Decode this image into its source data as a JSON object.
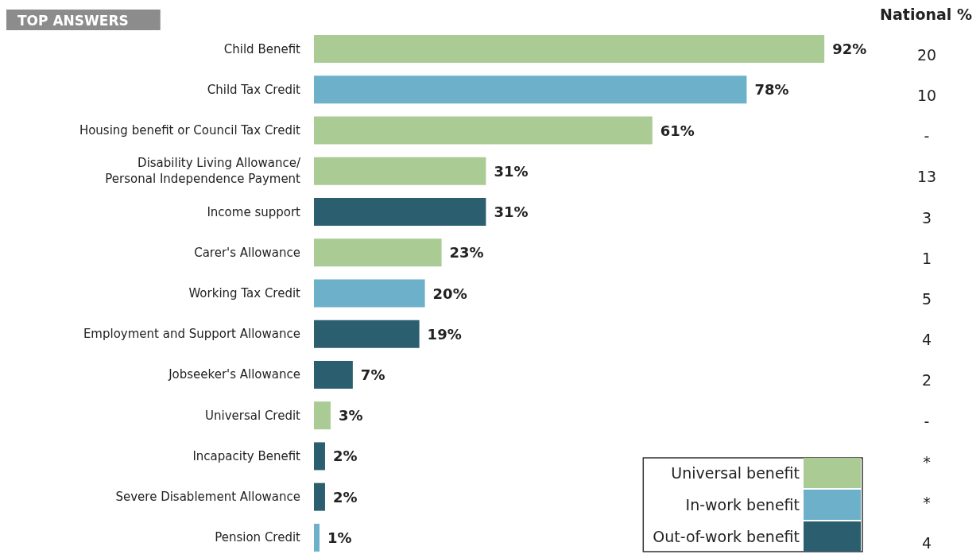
{
  "chart_data": {
    "type": "bar",
    "title": "TOP ANSWERS",
    "orientation": "horizontal",
    "stacked": true,
    "categories": [
      "Child Benefit",
      "Child Tax Credit",
      "Housing benefit or Council Tax Credit",
      "Disability Living Allowance/\nPersonal Independence Payment",
      "Income support",
      "Carer's Allowance",
      "Working Tax Credit",
      "Employment and Support Allowance",
      "Jobseeker's Allowance",
      "Universal Credit",
      "Incapacity Benefit",
      "Severe Disablement Allowance",
      "Pension Credit"
    ],
    "series": [
      {
        "name": "Universal benefit",
        "color": "#aacb94",
        "values": [
          92,
          null,
          61,
          31,
          null,
          23,
          null,
          null,
          null,
          3,
          null,
          null,
          null
        ],
        "value_labels": [
          "92%",
          null,
          "61%",
          "31%",
          null,
          "23%",
          null,
          null,
          null,
          "3%",
          null,
          null,
          null
        ]
      },
      {
        "name": "In-work benefit",
        "color": "#6db0c9",
        "values": [
          null,
          78,
          null,
          null,
          null,
          null,
          20,
          null,
          null,
          null,
          null,
          null,
          1
        ],
        "value_labels": [
          null,
          "78%",
          null,
          null,
          null,
          null,
          "20%",
          null,
          null,
          null,
          null,
          null,
          "1%"
        ]
      },
      {
        "name": "Out-of-work benefit",
        "color": "#2b5e6f",
        "values": [
          null,
          null,
          null,
          null,
          31,
          null,
          null,
          19,
          7,
          null,
          2,
          2,
          null
        ],
        "value_labels": [
          null,
          null,
          null,
          null,
          "31%",
          null,
          null,
          "19%",
          "7%",
          null,
          "2%",
          "2%",
          null
        ]
      }
    ],
    "annotations": [
      "National %",
      "20",
      "10",
      "-",
      "13",
      "3",
      "1",
      "5",
      "4",
      "2",
      "-",
      "*",
      "*",
      "4"
    ],
    "legend": "bottom right",
    "tick_labels": "y"
  }
}
